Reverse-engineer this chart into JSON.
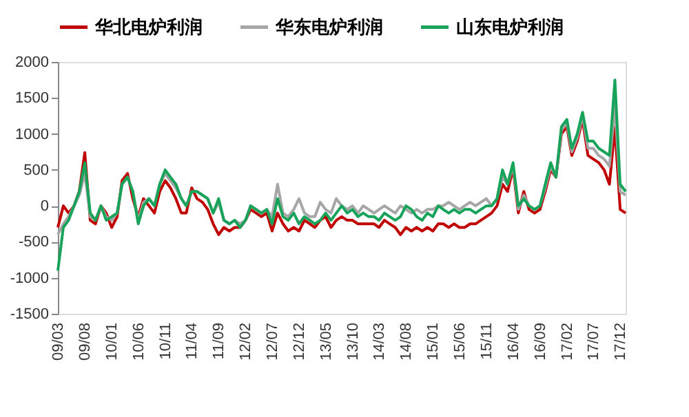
{
  "chart_data": {
    "type": "line",
    "legend": "top",
    "grid": false,
    "line_style": "solid",
    "marker": "none",
    "x": [
      "2009-03",
      "2009-04",
      "2009-05",
      "2009-06",
      "2009-07",
      "2009-08",
      "2009-09",
      "2009-10",
      "2009-11",
      "2009-12",
      "2010-01",
      "2010-02",
      "2010-03",
      "2010-04",
      "2010-05",
      "2010-06",
      "2010-07",
      "2010-08",
      "2010-09",
      "2010-10",
      "2010-11",
      "2010-12",
      "2011-01",
      "2011-02",
      "2011-03",
      "2011-04",
      "2011-05",
      "2011-06",
      "2011-07",
      "2011-08",
      "2011-09",
      "2011-10",
      "2011-11",
      "2011-12",
      "2012-01",
      "2012-02",
      "2012-03",
      "2012-04",
      "2012-05",
      "2012-06",
      "2012-07",
      "2012-08",
      "2012-09",
      "2012-10",
      "2012-11",
      "2012-12",
      "2013-01",
      "2013-02",
      "2013-03",
      "2013-04",
      "2013-05",
      "2013-06",
      "2013-07",
      "2013-08",
      "2013-09",
      "2013-10",
      "2013-11",
      "2013-12",
      "2014-01",
      "2014-02",
      "2014-03",
      "2014-04",
      "2014-05",
      "2014-06",
      "2014-07",
      "2014-08",
      "2014-09",
      "2014-10",
      "2014-11",
      "2014-12",
      "2015-01",
      "2015-02",
      "2015-03",
      "2015-04",
      "2015-05",
      "2015-06",
      "2015-07",
      "2015-08",
      "2015-09",
      "2015-10",
      "2015-11",
      "2015-12",
      "2016-01",
      "2016-02",
      "2016-03",
      "2016-04",
      "2016-05",
      "2016-06",
      "2016-07",
      "2016-08",
      "2016-09",
      "2016-10",
      "2016-11",
      "2016-12",
      "2017-01",
      "2017-02",
      "2017-03",
      "2017-04",
      "2017-05",
      "2017-06",
      "2017-07",
      "2017-08",
      "2017-09",
      "2017-10",
      "2017-11",
      "2017-12",
      "2018-01"
    ],
    "xlim": [
      "2009-03",
      "2018-01"
    ],
    "xticks": [
      {
        "value": "2009-03",
        "label": "09/03"
      },
      {
        "value": "2009-08",
        "label": "09/08"
      },
      {
        "value": "2010-01",
        "label": "10/01"
      },
      {
        "value": "2010-06",
        "label": "10/06"
      },
      {
        "value": "2010-11",
        "label": "10/11"
      },
      {
        "value": "2011-04",
        "label": "11/04"
      },
      {
        "value": "2011-09",
        "label": "11/09"
      },
      {
        "value": "2012-02",
        "label": "12/02"
      },
      {
        "value": "2012-07",
        "label": "12/07"
      },
      {
        "value": "2012-12",
        "label": "12/12"
      },
      {
        "value": "2013-05",
        "label": "13/05"
      },
      {
        "value": "2013-10",
        "label": "13/10"
      },
      {
        "value": "2014-03",
        "label": "14/03"
      },
      {
        "value": "2014-08",
        "label": "14/08"
      },
      {
        "value": "2015-01",
        "label": "15/01"
      },
      {
        "value": "2015-06",
        "label": "15/06"
      },
      {
        "value": "2015-11",
        "label": "15/11"
      },
      {
        "value": "2016-04",
        "label": "16/04"
      },
      {
        "value": "2016-09",
        "label": "16/09"
      },
      {
        "value": "2017-02",
        "label": "17/02"
      },
      {
        "value": "2017-07",
        "label": "17/07"
      },
      {
        "value": "2017-12",
        "label": "17/12"
      }
    ],
    "ylim": [
      -1500,
      2000
    ],
    "yticks": [
      -1500,
      -1000,
      -500,
      0,
      500,
      1000,
      1500,
      2000
    ],
    "series": [
      {
        "name": "华北电炉利润",
        "color": "#c00000",
        "values": [
          -300,
          0,
          -100,
          0,
          200,
          740,
          -200,
          -250,
          0,
          -100,
          -300,
          -150,
          350,
          450,
          100,
          -150,
          100,
          0,
          -100,
          200,
          350,
          250,
          100,
          -100,
          -100,
          250,
          100,
          50,
          -50,
          -250,
          -400,
          -300,
          -350,
          -300,
          -300,
          -200,
          -50,
          -100,
          -150,
          -100,
          -350,
          -100,
          -250,
          -350,
          -300,
          -350,
          -200,
          -250,
          -300,
          -200,
          -150,
          -300,
          -200,
          -150,
          -200,
          -200,
          -250,
          -250,
          -250,
          -250,
          -300,
          -200,
          -250,
          -300,
          -400,
          -300,
          -350,
          -300,
          -350,
          -300,
          -350,
          -250,
          -250,
          -300,
          -250,
          -300,
          -300,
          -250,
          -250,
          -200,
          -150,
          -100,
          0,
          300,
          200,
          520,
          -100,
          200,
          -50,
          -100,
          -50,
          200,
          500,
          400,
          1000,
          1100,
          700,
          900,
          1200,
          700,
          650,
          600,
          500,
          300,
          1090,
          -50,
          -100
        ]
      },
      {
        "name": "华东电炉利润",
        "color": "#a6a6a6",
        "values": [
          -400,
          -250,
          -150,
          0,
          150,
          450,
          -150,
          -200,
          0,
          -150,
          -200,
          -100,
          300,
          400,
          200,
          -200,
          50,
          100,
          0,
          300,
          450,
          350,
          250,
          100,
          0,
          200,
          200,
          150,
          100,
          -100,
          50,
          -200,
          -250,
          -200,
          -250,
          -200,
          0,
          -50,
          -100,
          -50,
          -150,
          300,
          -100,
          -150,
          -50,
          100,
          -100,
          -150,
          -150,
          50,
          -50,
          -100,
          100,
          0,
          -50,
          0,
          -100,
          0,
          -50,
          -100,
          -50,
          0,
          -50,
          -100,
          0,
          -50,
          -100,
          -50,
          -100,
          -50,
          -50,
          0,
          0,
          50,
          0,
          -50,
          0,
          50,
          0,
          50,
          100,
          0,
          100,
          400,
          300,
          550,
          -50,
          150,
          0,
          -50,
          0,
          250,
          550,
          400,
          1050,
          1150,
          750,
          950,
          1250,
          800,
          800,
          700,
          650,
          550,
          1400,
          200,
          150
        ]
      },
      {
        "name": "山东电炉利润",
        "color": "#17a35a",
        "values": [
          -900,
          -300,
          -200,
          0,
          200,
          600,
          -100,
          -200,
          0,
          -200,
          -150,
          -100,
          300,
          400,
          200,
          -250,
          0,
          100,
          0,
          300,
          500,
          400,
          300,
          100,
          0,
          200,
          200,
          150,
          100,
          -100,
          100,
          -200,
          -250,
          -200,
          -300,
          -200,
          0,
          -50,
          -100,
          -50,
          -250,
          100,
          -150,
          -200,
          -100,
          -250,
          -150,
          -200,
          -250,
          -200,
          -100,
          -200,
          -100,
          0,
          -100,
          -50,
          -150,
          -100,
          -150,
          -150,
          -200,
          -100,
          -150,
          -200,
          -150,
          0,
          -50,
          -150,
          -200,
          -100,
          -150,
          0,
          -50,
          -100,
          -50,
          -100,
          -50,
          -50,
          -100,
          -50,
          0,
          0,
          100,
          500,
          300,
          600,
          0,
          100,
          0,
          -50,
          0,
          300,
          600,
          400,
          1100,
          1200,
          800,
          1000,
          1300,
          900,
          900,
          800,
          750,
          700,
          1750,
          300,
          200
        ]
      }
    ]
  }
}
